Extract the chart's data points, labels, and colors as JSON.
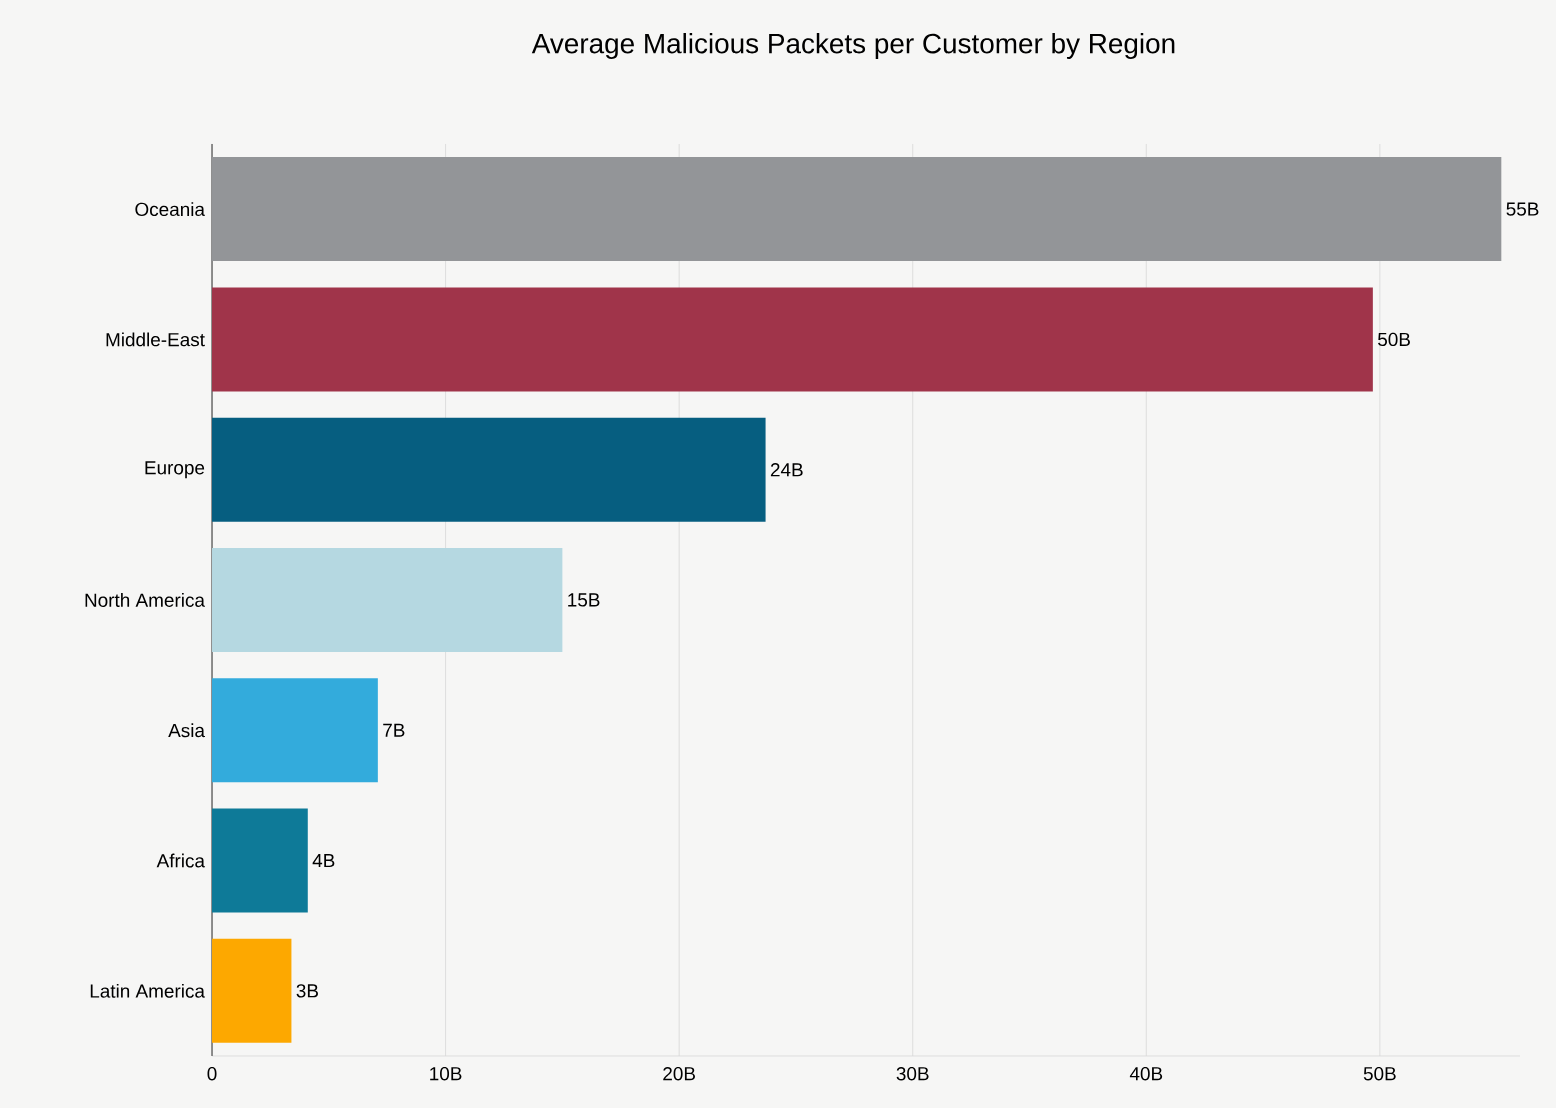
{
  "chart_data": {
    "type": "bar",
    "orientation": "horizontal",
    "title": "Average Malicious Packets per Customer by Region",
    "categories": [
      "Oceania",
      "Middle-East",
      "Europe",
      "North America",
      "Asia",
      "Africa",
      "Latin America"
    ],
    "values": [
      55.2,
      49.7,
      23.7,
      15.0,
      7.1,
      4.1,
      3.4
    ],
    "colors": [
      "#939598",
      "#a0344a",
      "#065e80",
      "#b5d8e1",
      "#33abdc",
      "#0e7a98",
      "#fda800"
    ],
    "value_labels": [
      "55B",
      "50B",
      "24B",
      "15B",
      "7B",
      "4B",
      "3B"
    ],
    "xlim": [
      0,
      56
    ],
    "xticks": [
      0,
      {
        "value": 10,
        "label": "10B"
      },
      {
        "value": 20,
        "label": "20B"
      },
      {
        "value": 30,
        "label": "30B"
      },
      {
        "value": 40,
        "label": "40B"
      },
      {
        "value": 50,
        "label": "50B"
      }
    ],
    "grid": "x"
  }
}
